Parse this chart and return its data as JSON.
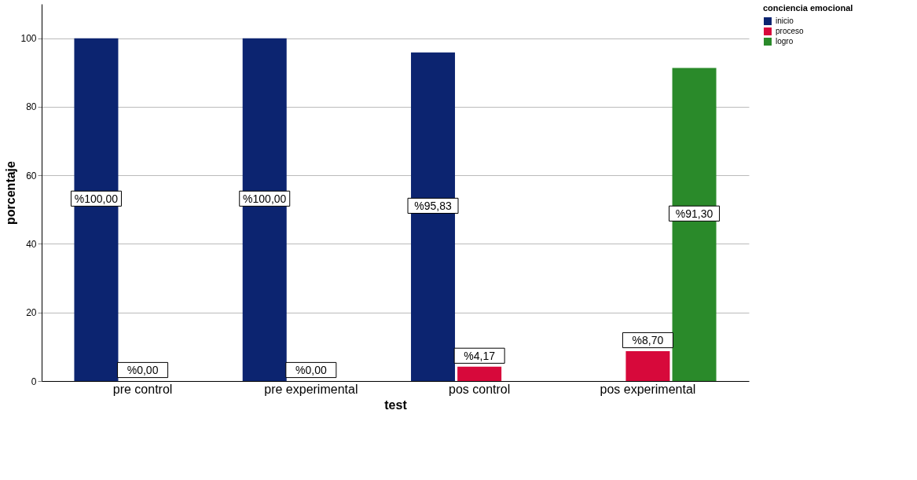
{
  "chart_data": {
    "type": "bar",
    "xlabel": "test",
    "ylabel": "porcentaje",
    "legend_title": "conciencia emocional",
    "categories": [
      "pre control",
      "pre experimental",
      "pos control",
      "pos experimental"
    ],
    "series": [
      {
        "name": "inicio",
        "color": "#0c2470",
        "values": [
          100,
          100,
          95.83,
          null
        ],
        "value_labels": [
          "%100,00",
          "%100,00",
          "%95,83",
          null
        ]
      },
      {
        "name": "proceso",
        "color": "#d7093b",
        "values": [
          0,
          0,
          4.17,
          8.7
        ],
        "value_labels": [
          "%0,00",
          "%0,00",
          "%4,17",
          "%8,70"
        ]
      },
      {
        "name": "logro",
        "color": "#2a8a2a",
        "values": [
          null,
          null,
          null,
          91.3
        ],
        "value_labels": [
          null,
          null,
          null,
          "%91,30"
        ]
      }
    ],
    "ylim": [
      0,
      110
    ],
    "yticks": [
      0,
      20,
      40,
      60,
      80,
      100
    ],
    "grid": "y",
    "legend": "top right"
  }
}
